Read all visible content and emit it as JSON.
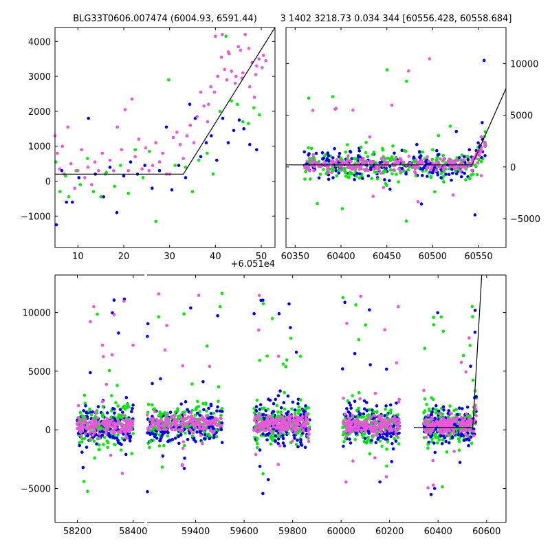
{
  "titles": {
    "left": "BLG33T0606.007474 (6004.93, 6591.44)",
    "right": "3 1402 3218.73 0.034 344 [60556.428, 60558.684]"
  },
  "colors": {
    "series_green": "#00ee00",
    "series_blue": "#0000ee",
    "series_pink": "#ee55dd",
    "model_line": "#000000",
    "axes": "#000000",
    "background": "#ffffff"
  },
  "chart_data": [
    {
      "type": "scatter",
      "name": "zoom",
      "x_offset_label": "+6.051e4",
      "xlim": [
        5,
        53
      ],
      "ylim": [
        -1900,
        4400
      ],
      "xticks": [
        10,
        20,
        30,
        40,
        50
      ],
      "yticks": [
        -1000,
        0,
        1000,
        2000,
        3000,
        4000
      ],
      "ytick_side": "left",
      "grid": false,
      "model": {
        "x": [
          5,
          33,
          53
        ],
        "y": [
          200,
          200,
          4400
        ]
      },
      "series": [
        {
          "color_key": "series_green",
          "x": [
            5.2,
            6.1,
            7.3,
            8.0,
            9.6,
            10.5,
            12.1,
            13.4,
            15.0,
            16.2,
            18.0,
            19.3,
            21.0,
            22.5,
            24.2,
            25.6,
            27.0,
            29.8,
            31.2,
            33.5,
            35.0,
            36.4,
            38.2,
            39.5,
            41.0,
            42.3,
            43.5,
            44.8,
            46.0,
            47.2,
            48.4,
            49.6
          ],
          "y": [
            550,
            -300,
            150,
            -450,
            300,
            -100,
            650,
            -300,
            -450,
            250,
            -150,
            450,
            -350,
            900,
            100,
            850,
            -1150,
            2900,
            450,
            400,
            -300,
            600,
            800,
            200,
            2000,
            4150,
            2300,
            2200,
            1700,
            1650,
            2100,
            1900
          ]
        },
        {
          "color_key": "series_blue",
          "x": [
            5.3,
            6.5,
            7.5,
            8.8,
            10.2,
            12.3,
            13.8,
            15.6,
            17.0,
            18.5,
            20.0,
            21.5,
            23.0,
            24.6,
            26.2,
            27.8,
            29.3,
            30.5,
            32.0,
            33.5,
            34.4,
            35.6,
            36.8,
            38.0,
            39.1,
            40.3,
            41.6,
            42.8,
            44.0,
            45.2,
            46.2,
            47.5,
            49.0
          ],
          "y": [
            -1250,
            300,
            -600,
            -600,
            100,
            1800,
            200,
            -450,
            400,
            -900,
            150,
            550,
            200,
            450,
            -200,
            300,
            1550,
            -250,
            450,
            100,
            2200,
            1800,
            700,
            1100,
            1300,
            600,
            1800,
            1100,
            1450,
            1750,
            1500,
            1050,
            900
          ]
        },
        {
          "color_key": "series_pink",
          "x": [
            5.0,
            5.5,
            6.0,
            6.6,
            7.0,
            7.8,
            8.5,
            9.3,
            10.0,
            10.8,
            11.5,
            12.2,
            13.0,
            13.7,
            14.5,
            15.3,
            16.0,
            17.0,
            17.8,
            18.6,
            19.5,
            20.3,
            21.0,
            21.8,
            22.5,
            23.3,
            24.0,
            24.8,
            25.5,
            26.3,
            27.0,
            27.8,
            28.5,
            29.3,
            30.0,
            30.8,
            31.6,
            32.3,
            33.0,
            33.8,
            34.5,
            35.3,
            36.0,
            36.8,
            37.5,
            38.3,
            39.0,
            39.8,
            40.5,
            41.3,
            42.0,
            42.8,
            43.5,
            44.3,
            45.0,
            45.8,
            46.5,
            47.3,
            48.0,
            48.8,
            49.5,
            50.2,
            51.0,
            40.0,
            41.5,
            43.0,
            44.5,
            46.0,
            47.5,
            49.0,
            50.5,
            38.5,
            42.5,
            45.5,
            48.5
          ],
          "y": [
            1300,
            800,
            350,
            1000,
            200,
            1550,
            500,
            -200,
            300,
            900,
            100,
            400,
            -100,
            550,
            300,
            800,
            200,
            600,
            300,
            1550,
            900,
            2050,
            300,
            2350,
            700,
            1200,
            350,
            950,
            300,
            450,
            1100,
            550,
            800,
            200,
            200,
            1250,
            1400,
            1050,
            650,
            1300,
            1600,
            1100,
            1850,
            2550,
            2150,
            1700,
            2700,
            2550,
            3000,
            3550,
            3200,
            3700,
            3150,
            2800,
            3850,
            2950,
            4200,
            3800,
            3400,
            3050,
            3500,
            3250,
            3450,
            4150,
            4200,
            3650,
            3000,
            3100,
            2700,
            3300,
            3600,
            2200,
            2900,
            3750,
            2400
          ]
        }
      ]
    },
    {
      "type": "scatter",
      "name": "season",
      "xlim": [
        60340,
        60580
      ],
      "ylim": [
        -7800,
        13500
      ],
      "xticks": [
        60350,
        60400,
        60450,
        60500,
        60550
      ],
      "yticks": [
        -5000,
        0,
        5000,
        10000
      ],
      "ytick_side": "right",
      "grid": false,
      "model": {
        "x": [
          60340,
          60543,
          60580
        ],
        "y": [
          200,
          200,
          7600
        ]
      }
    },
    {
      "type": "scatter",
      "name": "full",
      "xlim": [
        58120,
        60680
      ],
      "ylim": [
        -7900,
        13200
      ],
      "xticks": [
        58200,
        58400,
        59400,
        59600,
        59800,
        60000,
        60200,
        60400,
        60600
      ],
      "yticks": [
        -5000,
        0,
        5000,
        10000
      ],
      "ytick_side": "left",
      "grid": false,
      "x_break": [
        58440,
        59200
      ],
      "model": {
        "x": [
          60300,
          60543,
          60580
        ],
        "y": [
          200,
          200,
          13200
        ]
      },
      "seasons": [
        {
          "x": [
            58200,
            58400
          ],
          "center": 300
        },
        {
          "x": [
            59200,
            59510
          ],
          "center": 600
        },
        {
          "x": [
            59640,
            59870
          ],
          "center": 500
        },
        {
          "x": [
            60005,
            60240
          ],
          "center": 400
        },
        {
          "x": [
            60340,
            60558
          ],
          "center": 400
        }
      ]
    }
  ]
}
